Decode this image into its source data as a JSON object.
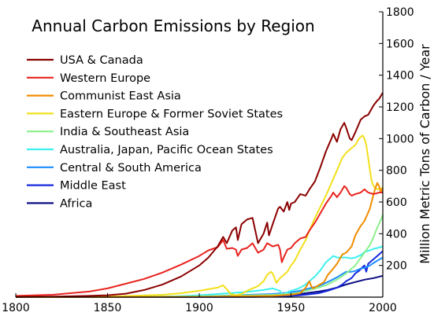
{
  "chart_data": {
    "type": "line",
    "title": "Annual Carbon Emissions by Region",
    "ylabel": "Million Metric Tons of Carbon / Year",
    "xlim": [
      1800,
      2000
    ],
    "ylim": [
      0,
      1800
    ],
    "x_ticks": [
      1800,
      1850,
      1900,
      1950,
      2000
    ],
    "y_ticks": [
      200,
      400,
      600,
      800,
      1000,
      1200,
      1400,
      1600,
      1800
    ],
    "grid": false,
    "legend_position": "top-left",
    "series": [
      {
        "name": "USA & Canada",
        "color": "#8b0000",
        "points": [
          [
            1800,
            1
          ],
          [
            1820,
            3
          ],
          [
            1840,
            8
          ],
          [
            1850,
            12
          ],
          [
            1860,
            22
          ],
          [
            1870,
            45
          ],
          [
            1880,
            80
          ],
          [
            1890,
            130
          ],
          [
            1900,
            200
          ],
          [
            1905,
            250
          ],
          [
            1910,
            320
          ],
          [
            1913,
            380
          ],
          [
            1915,
            340
          ],
          [
            1918,
            420
          ],
          [
            1920,
            440
          ],
          [
            1921,
            360
          ],
          [
            1923,
            460
          ],
          [
            1926,
            490
          ],
          [
            1929,
            500
          ],
          [
            1932,
            340
          ],
          [
            1935,
            400
          ],
          [
            1937,
            470
          ],
          [
            1938,
            390
          ],
          [
            1940,
            460
          ],
          [
            1943,
            560
          ],
          [
            1944,
            570
          ],
          [
            1946,
            540
          ],
          [
            1948,
            600
          ],
          [
            1949,
            550
          ],
          [
            1950,
            590
          ],
          [
            1952,
            600
          ],
          [
            1955,
            650
          ],
          [
            1958,
            640
          ],
          [
            1960,
            680
          ],
          [
            1963,
            730
          ],
          [
            1966,
            820
          ],
          [
            1969,
            920
          ],
          [
            1972,
            1000
          ],
          [
            1973,
            1030
          ],
          [
            1975,
            980
          ],
          [
            1977,
            1060
          ],
          [
            1979,
            1100
          ],
          [
            1980,
            1070
          ],
          [
            1982,
            1000
          ],
          [
            1983,
            990
          ],
          [
            1985,
            1040
          ],
          [
            1988,
            1120
          ],
          [
            1990,
            1140
          ],
          [
            1992,
            1150
          ],
          [
            1995,
            1210
          ],
          [
            1997,
            1240
          ],
          [
            1998,
            1250
          ],
          [
            2000,
            1290
          ]
        ]
      },
      {
        "name": "Western Europe",
        "color": "#e8231e",
        "points": [
          [
            1800,
            8
          ],
          [
            1820,
            15
          ],
          [
            1840,
            35
          ],
          [
            1850,
            55
          ],
          [
            1860,
            85
          ],
          [
            1870,
            115
          ],
          [
            1880,
            155
          ],
          [
            1890,
            205
          ],
          [
            1900,
            260
          ],
          [
            1905,
            295
          ],
          [
            1910,
            315
          ],
          [
            1913,
            360
          ],
          [
            1915,
            305
          ],
          [
            1918,
            310
          ],
          [
            1920,
            300
          ],
          [
            1921,
            260
          ],
          [
            1923,
            300
          ],
          [
            1926,
            310
          ],
          [
            1929,
            340
          ],
          [
            1932,
            280
          ],
          [
            1935,
            300
          ],
          [
            1937,
            340
          ],
          [
            1940,
            320
          ],
          [
            1943,
            330
          ],
          [
            1944,
            300
          ],
          [
            1945,
            220
          ],
          [
            1946,
            250
          ],
          [
            1948,
            300
          ],
          [
            1950,
            310
          ],
          [
            1952,
            340
          ],
          [
            1955,
            370
          ],
          [
            1958,
            380
          ],
          [
            1960,
            420
          ],
          [
            1963,
            470
          ],
          [
            1966,
            530
          ],
          [
            1969,
            590
          ],
          [
            1972,
            640
          ],
          [
            1973,
            660
          ],
          [
            1975,
            630
          ],
          [
            1977,
            660
          ],
          [
            1979,
            700
          ],
          [
            1980,
            690
          ],
          [
            1982,
            650
          ],
          [
            1983,
            640
          ],
          [
            1985,
            650
          ],
          [
            1988,
            660
          ],
          [
            1990,
            680
          ],
          [
            1992,
            660
          ],
          [
            1995,
            650
          ],
          [
            1998,
            660
          ],
          [
            2000,
            660
          ]
        ]
      },
      {
        "name": "Communist East Asia",
        "color": "#f08c00",
        "points": [
          [
            1800,
            0
          ],
          [
            1900,
            2
          ],
          [
            1920,
            5
          ],
          [
            1940,
            8
          ],
          [
            1950,
            15
          ],
          [
            1955,
            25
          ],
          [
            1958,
            60
          ],
          [
            1960,
            100
          ],
          [
            1961,
            70
          ],
          [
            1962,
            55
          ],
          [
            1965,
            75
          ],
          [
            1968,
            95
          ],
          [
            1970,
            140
          ],
          [
            1973,
            180
          ],
          [
            1975,
            210
          ],
          [
            1978,
            270
          ],
          [
            1980,
            280
          ],
          [
            1983,
            320
          ],
          [
            1985,
            390
          ],
          [
            1988,
            450
          ],
          [
            1990,
            480
          ],
          [
            1993,
            560
          ],
          [
            1995,
            650
          ],
          [
            1996,
            690
          ],
          [
            1997,
            720
          ],
          [
            1998,
            700
          ],
          [
            1999,
            660
          ],
          [
            2000,
            690
          ]
        ]
      },
      {
        "name": "Eastern Europe & Former Soviet States",
        "color": "#f2e01c",
        "points": [
          [
            1800,
            0
          ],
          [
            1850,
            3
          ],
          [
            1880,
            15
          ],
          [
            1890,
            25
          ],
          [
            1900,
            40
          ],
          [
            1905,
            50
          ],
          [
            1910,
            60
          ],
          [
            1913,
            75
          ],
          [
            1915,
            50
          ],
          [
            1917,
            20
          ],
          [
            1920,
            12
          ],
          [
            1923,
            20
          ],
          [
            1926,
            40
          ],
          [
            1929,
            55
          ],
          [
            1932,
            70
          ],
          [
            1935,
            100
          ],
          [
            1937,
            140
          ],
          [
            1939,
            160
          ],
          [
            1940,
            150
          ],
          [
            1942,
            90
          ],
          [
            1944,
            120
          ],
          [
            1946,
            140
          ],
          [
            1948,
            160
          ],
          [
            1950,
            200
          ],
          [
            1952,
            230
          ],
          [
            1955,
            300
          ],
          [
            1958,
            360
          ],
          [
            1960,
            420
          ],
          [
            1963,
            500
          ],
          [
            1966,
            570
          ],
          [
            1969,
            640
          ],
          [
            1972,
            720
          ],
          [
            1975,
            800
          ],
          [
            1978,
            880
          ],
          [
            1980,
            910
          ],
          [
            1983,
            940
          ],
          [
            1985,
            960
          ],
          [
            1987,
            1000
          ],
          [
            1989,
            1020
          ],
          [
            1990,
            1000
          ],
          [
            1991,
            960
          ],
          [
            1992,
            880
          ],
          [
            1993,
            800
          ],
          [
            1994,
            730
          ],
          [
            1995,
            700
          ],
          [
            1997,
            680
          ],
          [
            2000,
            690
          ]
        ]
      },
      {
        "name": "India & Southeast Asia",
        "color": "#8cf08c",
        "points": [
          [
            1800,
            0
          ],
          [
            1900,
            5
          ],
          [
            1920,
            10
          ],
          [
            1940,
            15
          ],
          [
            1950,
            22
          ],
          [
            1955,
            30
          ],
          [
            1960,
            45
          ],
          [
            1965,
            60
          ],
          [
            1970,
            80
          ],
          [
            1975,
            110
          ],
          [
            1980,
            150
          ],
          [
            1985,
            200
          ],
          [
            1990,
            280
          ],
          [
            1993,
            330
          ],
          [
            1995,
            380
          ],
          [
            1997,
            440
          ],
          [
            1999,
            490
          ],
          [
            2000,
            520
          ]
        ]
      },
      {
        "name": "Australia, Japan, Pacific Ocean States",
        "color": "#3cf0f0",
        "points": [
          [
            1800,
            0
          ],
          [
            1880,
            2
          ],
          [
            1900,
            12
          ],
          [
            1910,
            20
          ],
          [
            1920,
            28
          ],
          [
            1925,
            32
          ],
          [
            1930,
            38
          ],
          [
            1935,
            45
          ],
          [
            1940,
            55
          ],
          [
            1944,
            40
          ],
          [
            1945,
            18
          ],
          [
            1946,
            22
          ],
          [
            1948,
            30
          ],
          [
            1950,
            40
          ],
          [
            1953,
            50
          ],
          [
            1955,
            60
          ],
          [
            1958,
            80
          ],
          [
            1960,
            100
          ],
          [
            1963,
            130
          ],
          [
            1966,
            170
          ],
          [
            1969,
            220
          ],
          [
            1972,
            250
          ],
          [
            1973,
            260
          ],
          [
            1975,
            250
          ],
          [
            1978,
            250
          ],
          [
            1980,
            250
          ],
          [
            1983,
            245
          ],
          [
            1985,
            250
          ],
          [
            1988,
            265
          ],
          [
            1990,
            285
          ],
          [
            1993,
            295
          ],
          [
            1995,
            305
          ],
          [
            1997,
            310
          ],
          [
            2000,
            320
          ]
        ]
      },
      {
        "name": "Central & South America",
        "color": "#1e8cff",
        "points": [
          [
            1800,
            0
          ],
          [
            1880,
            1
          ],
          [
            1900,
            4
          ],
          [
            1910,
            8
          ],
          [
            1920,
            12
          ],
          [
            1930,
            16
          ],
          [
            1940,
            20
          ],
          [
            1945,
            25
          ],
          [
            1950,
            30
          ],
          [
            1955,
            40
          ],
          [
            1960,
            55
          ],
          [
            1965,
            70
          ],
          [
            1970,
            95
          ],
          [
            1975,
            125
          ],
          [
            1980,
            160
          ],
          [
            1983,
            160
          ],
          [
            1985,
            165
          ],
          [
            1988,
            180
          ],
          [
            1990,
            185
          ],
          [
            1993,
            200
          ],
          [
            1995,
            215
          ],
          [
            1997,
            230
          ],
          [
            2000,
            250
          ]
        ]
      },
      {
        "name": "Middle East",
        "color": "#1428dc",
        "points": [
          [
            1800,
            0
          ],
          [
            1930,
            1
          ],
          [
            1940,
            3
          ],
          [
            1950,
            8
          ],
          [
            1955,
            12
          ],
          [
            1960,
            18
          ],
          [
            1965,
            25
          ],
          [
            1970,
            40
          ],
          [
            1975,
            60
          ],
          [
            1978,
            80
          ],
          [
            1980,
            100
          ],
          [
            1983,
            120
          ],
          [
            1985,
            150
          ],
          [
            1987,
            165
          ],
          [
            1989,
            190
          ],
          [
            1990,
            200
          ],
          [
            1991,
            160
          ],
          [
            1992,
            210
          ],
          [
            1994,
            230
          ],
          [
            1996,
            250
          ],
          [
            1998,
            270
          ],
          [
            2000,
            290
          ]
        ]
      },
      {
        "name": "Africa",
        "color": "#0a0a82",
        "points": [
          [
            1800,
            0
          ],
          [
            1900,
            2
          ],
          [
            1920,
            6
          ],
          [
            1940,
            10
          ],
          [
            1950,
            16
          ],
          [
            1955,
            20
          ],
          [
            1960,
            28
          ],
          [
            1965,
            35
          ],
          [
            1970,
            45
          ],
          [
            1975,
            60
          ],
          [
            1980,
            80
          ],
          [
            1985,
            95
          ],
          [
            1990,
            110
          ],
          [
            1995,
            120
          ],
          [
            2000,
            135
          ]
        ]
      }
    ]
  }
}
